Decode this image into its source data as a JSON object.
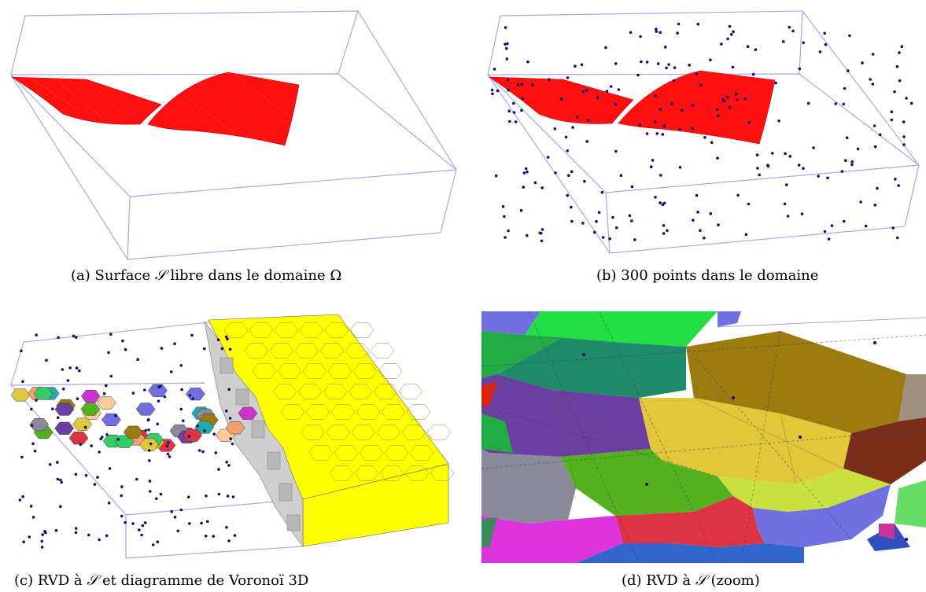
{
  "figure": {
    "a": {
      "prefix": "(a) Surface ",
      "math": "𝒮",
      "suffix": " libre dans le domaine Ω"
    },
    "b": {
      "text": "(b) 300 points dans le domaine"
    },
    "c": {
      "prefix": "(c) RVD à ",
      "math": "𝒮",
      "suffix": " et diagramme de Voronoï 3D"
    },
    "d": {
      "prefix": "(d) RVD à ",
      "math": "𝒮",
      "suffix": " (zoom)"
    }
  },
  "colors": {
    "box": "#a8a8e6",
    "surface": "#ff1010",
    "points": "#10106e",
    "voronoi_face": "#ffff00",
    "voronoi_side": "#d8d8d8"
  }
}
